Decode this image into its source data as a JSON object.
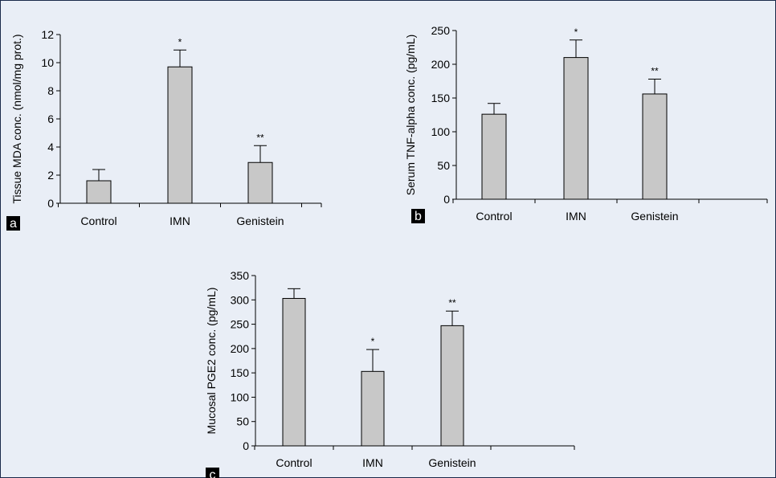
{
  "figure": {
    "background_color": "#e9eef6",
    "frame_color": "#1a2a4a",
    "bar_fill_color": "#c8c8c8",
    "panel_tag_color": "#000000"
  },
  "chart_data": [
    {
      "panel": "a",
      "type": "bar",
      "categories": [
        "Control",
        "IMN",
        "Genistein"
      ],
      "values": [
        1.6,
        9.7,
        2.9
      ],
      "errors": [
        0.8,
        1.2,
        1.2
      ],
      "significance": [
        "",
        "*",
        "**"
      ],
      "ylabel": "Tissue MDA conc. (nmol/mg prot.)",
      "ylim": [
        0,
        12
      ],
      "yticks": [
        0,
        2,
        4,
        6,
        8,
        10,
        12
      ],
      "grid": false
    },
    {
      "panel": "b",
      "type": "bar",
      "categories": [
        "Control",
        "IMN",
        "Genistein"
      ],
      "values": [
        126,
        210,
        156
      ],
      "errors": [
        16,
        26,
        22
      ],
      "significance": [
        "",
        "*",
        "**"
      ],
      "ylabel": "Serum TNF-alpha conc. (pg/mL)",
      "ylim": [
        0,
        250
      ],
      "yticks": [
        0,
        50,
        100,
        150,
        200,
        250
      ],
      "grid": false
    },
    {
      "panel": "c",
      "type": "bar",
      "categories": [
        "Control",
        "IMN",
        "Genistein"
      ],
      "values": [
        303,
        153,
        247
      ],
      "errors": [
        20,
        45,
        30
      ],
      "significance": [
        "",
        "*",
        "**"
      ],
      "ylabel": "Mucosal PGE2 conc. (pg/mL)",
      "ylim": [
        0,
        350
      ],
      "yticks": [
        0,
        50,
        100,
        150,
        200,
        250,
        300,
        350
      ],
      "grid": false
    }
  ]
}
